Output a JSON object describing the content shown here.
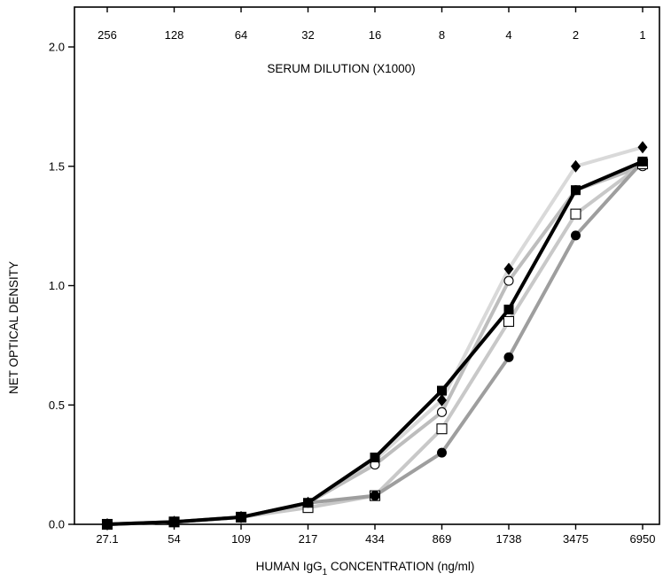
{
  "chart_data": {
    "type": "line",
    "title": "",
    "xlabel": "HUMAN IgG",
    "xlabel_sub": "1",
    "xlabel_suffix": " CONCENTRATION (ng/ml)",
    "ylabel": "NET OPTICAL DENSITY",
    "secondary_xlabel": "SERUM DILUTION (X1000)",
    "categories": [
      "27.1",
      "54",
      "109",
      "217",
      "434",
      "869",
      "1738",
      "3475",
      "6950"
    ],
    "secondary_categories": [
      "256",
      "128",
      "64",
      "32",
      "16",
      "8",
      "4",
      "2",
      "1"
    ],
    "ylim": [
      0.0,
      2.0
    ],
    "yticks": [
      "0.0",
      "0.5",
      "1.0",
      "1.5",
      "2.0"
    ],
    "ytick_values": [
      0.0,
      0.5,
      1.0,
      1.5,
      2.0
    ],
    "grid": false,
    "series": [
      {
        "marker": "diamond-filled",
        "line_color": "#d9d9d9",
        "values": [
          0.0,
          0.01,
          0.03,
          0.09,
          0.27,
          0.52,
          1.07,
          1.5,
          1.58
        ]
      },
      {
        "marker": "circle-open",
        "line_color": "#bdbdbd",
        "values": [
          0.0,
          0.01,
          0.03,
          0.09,
          0.25,
          0.47,
          1.02,
          1.4,
          1.5
        ]
      },
      {
        "marker": "square-open",
        "line_color": "#c8c8c8",
        "values": [
          0.0,
          0.01,
          0.03,
          0.07,
          0.12,
          0.4,
          0.85,
          1.3,
          1.51
        ]
      },
      {
        "marker": "circle-filled",
        "line_color": "#9e9e9e",
        "values": [
          0.0,
          0.01,
          0.03,
          0.09,
          0.12,
          0.3,
          0.7,
          1.21,
          1.52
        ]
      },
      {
        "marker": "square-filled",
        "line_color": "#000000",
        "values": [
          0.0,
          0.01,
          0.03,
          0.09,
          0.28,
          0.56,
          0.9,
          1.4,
          1.52
        ]
      }
    ]
  }
}
